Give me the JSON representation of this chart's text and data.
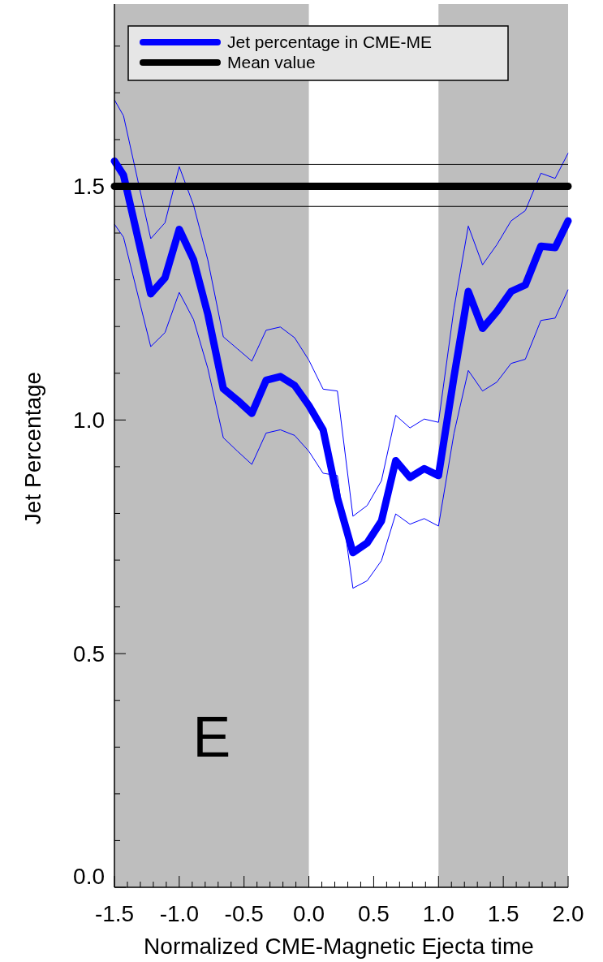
{
  "chart_data": {
    "type": "line",
    "xlabel": "Normalized CME-Magnetic Ejecta time",
    "ylabel": "Jet Percentage",
    "xlim": [
      -1.5,
      2.0
    ],
    "ylim": [
      0,
      1.89
    ],
    "xticks": [
      {
        "value": -1.5,
        "label": "-1.5"
      },
      {
        "value": -1.4,
        "label": null
      },
      {
        "value": -1.3,
        "label": null
      },
      {
        "value": -1.2,
        "label": null
      },
      {
        "value": -1.1,
        "label": null
      },
      {
        "value": -1.0,
        "label": "-1.0"
      },
      {
        "value": -0.9,
        "label": null
      },
      {
        "value": -0.8,
        "label": null
      },
      {
        "value": -0.7,
        "label": null
      },
      {
        "value": -0.6,
        "label": null
      },
      {
        "value": -0.5,
        "label": "-0.5"
      },
      {
        "value": -0.4,
        "label": null
      },
      {
        "value": -0.3,
        "label": null
      },
      {
        "value": -0.2,
        "label": null
      },
      {
        "value": -0.1,
        "label": null
      },
      {
        "value": 0,
        "label": "0.0"
      },
      {
        "value": 0.1,
        "label": null
      },
      {
        "value": 0.2,
        "label": null
      },
      {
        "value": 0.3,
        "label": null
      },
      {
        "value": 0.4,
        "label": null
      },
      {
        "value": 0.5,
        "label": "0.5"
      },
      {
        "value": 0.6,
        "label": null
      },
      {
        "value": 0.7,
        "label": null
      },
      {
        "value": 0.8,
        "label": null
      },
      {
        "value": 0.9,
        "label": null
      },
      {
        "value": 1.0,
        "label": "1.0"
      },
      {
        "value": 1.1,
        "label": null
      },
      {
        "value": 1.2,
        "label": null
      },
      {
        "value": 1.3,
        "label": null
      },
      {
        "value": 1.4,
        "label": null
      },
      {
        "value": 1.5,
        "label": "1.5"
      },
      {
        "value": 1.6,
        "label": null
      },
      {
        "value": 1.7,
        "label": null
      },
      {
        "value": 1.8,
        "label": null
      },
      {
        "value": 1.9,
        "label": null
      },
      {
        "value": 2.0,
        "label": "2.0"
      }
    ],
    "yticks": [
      {
        "value": 0,
        "label": "0.0"
      },
      {
        "value": 0.1,
        "label": null
      },
      {
        "value": 0.2,
        "label": null
      },
      {
        "value": 0.3,
        "label": null
      },
      {
        "value": 0.4,
        "label": null
      },
      {
        "value": 0.5,
        "label": "0.5"
      },
      {
        "value": 0.6,
        "label": null
      },
      {
        "value": 0.7,
        "label": null
      },
      {
        "value": 0.8,
        "label": null
      },
      {
        "value": 0.9,
        "label": null
      },
      {
        "value": 1.0,
        "label": "1.0"
      },
      {
        "value": 1.1,
        "label": null
      },
      {
        "value": 1.2,
        "label": null
      },
      {
        "value": 1.3,
        "label": null
      },
      {
        "value": 1.4,
        "label": null
      },
      {
        "value": 1.5,
        "label": "1.5"
      },
      {
        "value": 1.6,
        "label": null
      },
      {
        "value": 1.7,
        "label": null
      },
      {
        "value": 1.8,
        "label": null
      }
    ],
    "bands": [
      {
        "axis": "x",
        "from": -1.5,
        "to": 0,
        "color": "#bebebe"
      },
      {
        "axis": "x",
        "from": 1.0,
        "to": 2.0,
        "color": "#bebebe"
      }
    ],
    "legend": "top left",
    "line_style": "solid",
    "grid": false,
    "annotations": [
      "E"
    ],
    "series": [
      {
        "color": "#0000ff",
        "x": [
          -1.5,
          -1.43,
          -1.22,
          -1.11,
          -1.0,
          -0.89,
          -0.78,
          -0.66,
          -0.55,
          -0.44,
          -0.33,
          -0.22,
          -0.11,
          0.0,
          0.11,
          0.22,
          0.34,
          0.45,
          0.56,
          0.67,
          0.78,
          0.89,
          1.0,
          1.12,
          1.23,
          1.34,
          1.45,
          1.56,
          1.67,
          1.79,
          1.9,
          2.0
        ],
        "values": [
          1.685,
          1.651,
          1.388,
          1.422,
          1.542,
          1.46,
          1.343,
          1.178,
          1.152,
          1.126,
          1.192,
          1.199,
          1.176,
          1.128,
          1.066,
          1.062,
          0.794,
          0.817,
          0.87,
          1.01,
          0.983,
          1.002,
          0.995,
          1.239,
          1.415,
          1.332,
          1.375,
          1.426,
          1.448,
          1.528,
          1.517,
          1.571
        ]
      },
      {
        "color": "#0000ff",
        "x": [
          -1.5,
          -1.43,
          -1.22,
          -1.11,
          -1.0,
          -0.89,
          -0.78,
          -0.66,
          -0.55,
          -0.44,
          -0.33,
          -0.22,
          -0.11,
          0.0,
          0.11,
          0.22,
          0.34,
          0.45,
          0.56,
          0.67,
          0.78,
          0.89,
          1.0,
          1.12,
          1.23,
          1.34,
          1.45,
          1.56,
          1.67,
          1.79,
          1.9,
          2.0
        ],
        "values": [
          1.419,
          1.391,
          1.157,
          1.187,
          1.273,
          1.215,
          1.111,
          0.962,
          0.933,
          0.905,
          0.972,
          0.979,
          0.967,
          0.933,
          0.886,
          0.881,
          0.64,
          0.656,
          0.699,
          0.799,
          0.777,
          0.789,
          0.773,
          0.972,
          1.106,
          1.062,
          1.081,
          1.121,
          1.13,
          1.213,
          1.218,
          1.279
        ]
      },
      {
        "color": "#000000",
        "x": [
          -1.5,
          2.0
        ],
        "values": [
          1.547,
          1.547
        ]
      },
      {
        "color": "#000000",
        "x": [
          -1.5,
          2.0
        ],
        "values": [
          1.457,
          1.457
        ]
      },
      {
        "name": "Jet percentage in CME-ME",
        "color": "#0000ff",
        "x": [
          -1.5,
          -1.43,
          -1.22,
          -1.11,
          -1.0,
          -0.89,
          -0.78,
          -0.66,
          -0.55,
          -0.44,
          -0.33,
          -0.22,
          -0.11,
          0.0,
          0.11,
          0.22,
          0.34,
          0.45,
          0.56,
          0.67,
          0.78,
          0.89,
          1.0,
          1.12,
          1.23,
          1.34,
          1.45,
          1.56,
          1.67,
          1.79,
          1.9,
          2.0
        ],
        "values": [
          1.554,
          1.524,
          1.27,
          1.304,
          1.408,
          1.343,
          1.227,
          1.067,
          1.042,
          1.014,
          1.085,
          1.093,
          1.074,
          1.031,
          0.979,
          0.834,
          0.716,
          0.737,
          0.784,
          0.913,
          0.877,
          0.896,
          0.881,
          1.093,
          1.275,
          1.196,
          1.232,
          1.275,
          1.289,
          1.372,
          1.369,
          1.426
        ]
      },
      {
        "name": "Mean value",
        "color": "#000000",
        "x": [
          -1.5,
          2.0
        ],
        "values": [
          1.5,
          1.5
        ]
      }
    ]
  }
}
